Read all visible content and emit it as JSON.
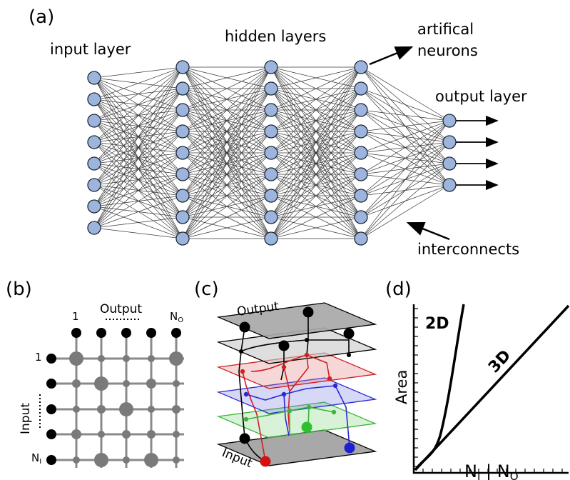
{
  "panel_a": {
    "label": "(a)",
    "input_layer": "input layer",
    "hidden_layers": "hidden layers",
    "artificial_neurons": [
      "artifical",
      "neurons"
    ],
    "output_layer": "output layer",
    "interconnects": "interconnects",
    "layer_sizes": [
      8,
      9,
      9,
      9,
      4
    ],
    "neuron_color": "#9db5dd"
  },
  "panel_b": {
    "label": "(b)",
    "output": "Output",
    "input": "Input",
    "one_top": "1",
    "one_left": "1",
    "n_output": "N",
    "n_output_sub": "O",
    "n_input": "N",
    "n_input_sub": "I"
  },
  "panel_c": {
    "label": "(c)",
    "output": "Output",
    "input": "Input"
  },
  "panel_d": {
    "label": "(d)",
    "ylabel": "Area",
    "curve_2d": "2D",
    "curve_3d": "3D",
    "xlabel_n1": "N",
    "xlabel_s1": "I",
    "xlabel_bar": " | ",
    "xlabel_n2": "N",
    "xlabel_s2": "O"
  }
}
